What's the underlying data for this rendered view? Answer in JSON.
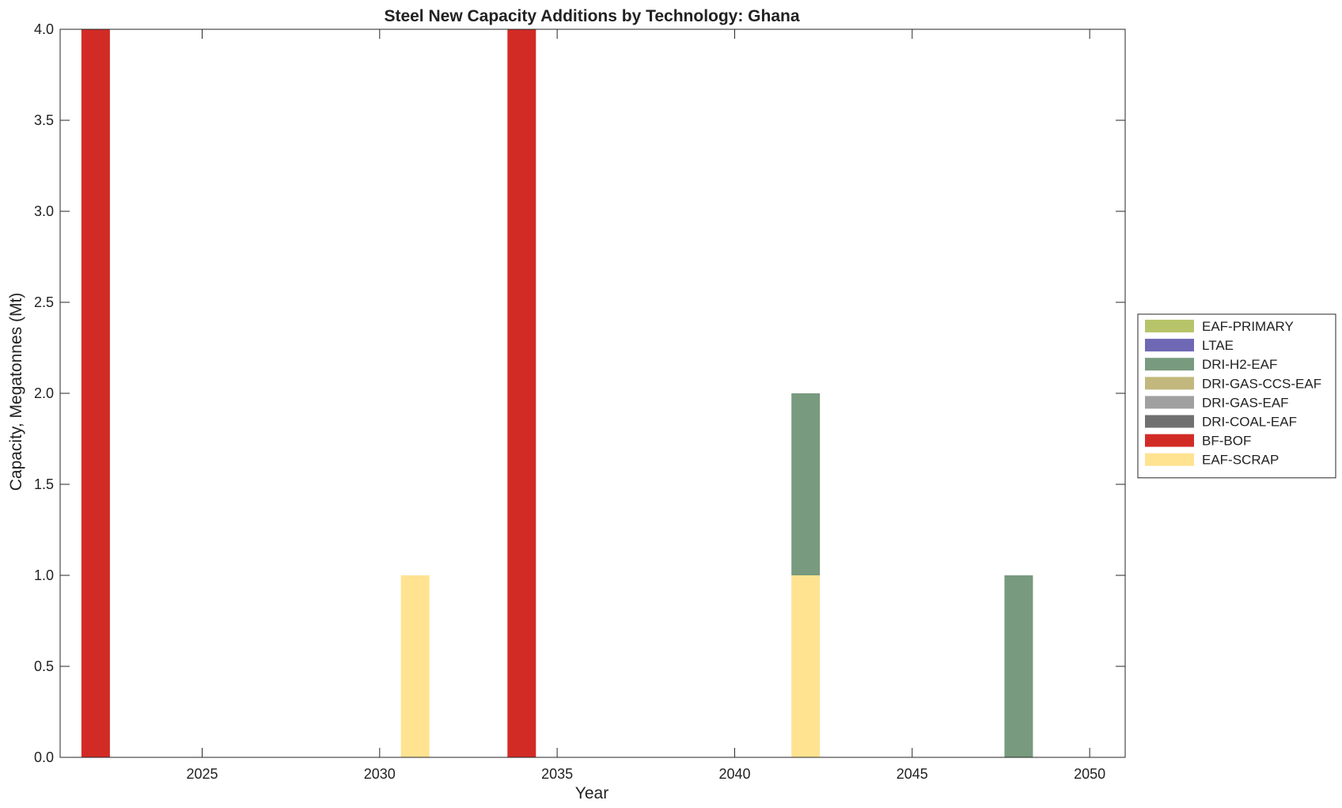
{
  "chart_data": {
    "type": "bar",
    "stacked": true,
    "title": "Steel New Capacity Additions by Technology: Ghana",
    "xlabel": "Year",
    "ylabel": "Capacity, Megatonnes (Mt)",
    "xlim": [
      2021,
      2051
    ],
    "ylim": [
      0,
      4
    ],
    "xticks": [
      2025,
      2030,
      2035,
      2040,
      2045,
      2050
    ],
    "yticks": [
      "0.0",
      "0.5",
      "1.0",
      "1.5",
      "2.0",
      "2.5",
      "3.0",
      "3.5",
      "4.0"
    ],
    "legend_position": "right",
    "grid": false,
    "x": [
      2022,
      2031,
      2034,
      2042,
      2048
    ],
    "series": [
      {
        "name": "EAF-SCRAP",
        "color": "#FFE391",
        "values": [
          0,
          1,
          0,
          1,
          0
        ]
      },
      {
        "name": "BF-BOF",
        "color": "#D22B26",
        "values": [
          4,
          0,
          4,
          0,
          0
        ]
      },
      {
        "name": "DRI-COAL-EAF",
        "color": "#707070",
        "values": [
          0,
          0,
          0,
          0,
          0
        ]
      },
      {
        "name": "DRI-GAS-EAF",
        "color": "#A0A0A0",
        "values": [
          0,
          0,
          0,
          0,
          0
        ]
      },
      {
        "name": "DRI-GAS-CCS-EAF",
        "color": "#C2B87E",
        "values": [
          0,
          0,
          0,
          0,
          0
        ]
      },
      {
        "name": "DRI-H2-EAF",
        "color": "#789A7E",
        "values": [
          0,
          0,
          0,
          1,
          1
        ]
      },
      {
        "name": "LTAE",
        "color": "#6F68B5",
        "values": [
          0,
          0,
          0,
          0,
          0
        ]
      },
      {
        "name": "EAF-PRIMARY",
        "color": "#B8C46A",
        "values": [
          0,
          0,
          0,
          0,
          0
        ]
      }
    ],
    "legend_order": [
      "EAF-PRIMARY",
      "LTAE",
      "DRI-H2-EAF",
      "DRI-GAS-CCS-EAF",
      "DRI-GAS-EAF",
      "DRI-COAL-EAF",
      "BF-BOF",
      "EAF-SCRAP"
    ]
  }
}
